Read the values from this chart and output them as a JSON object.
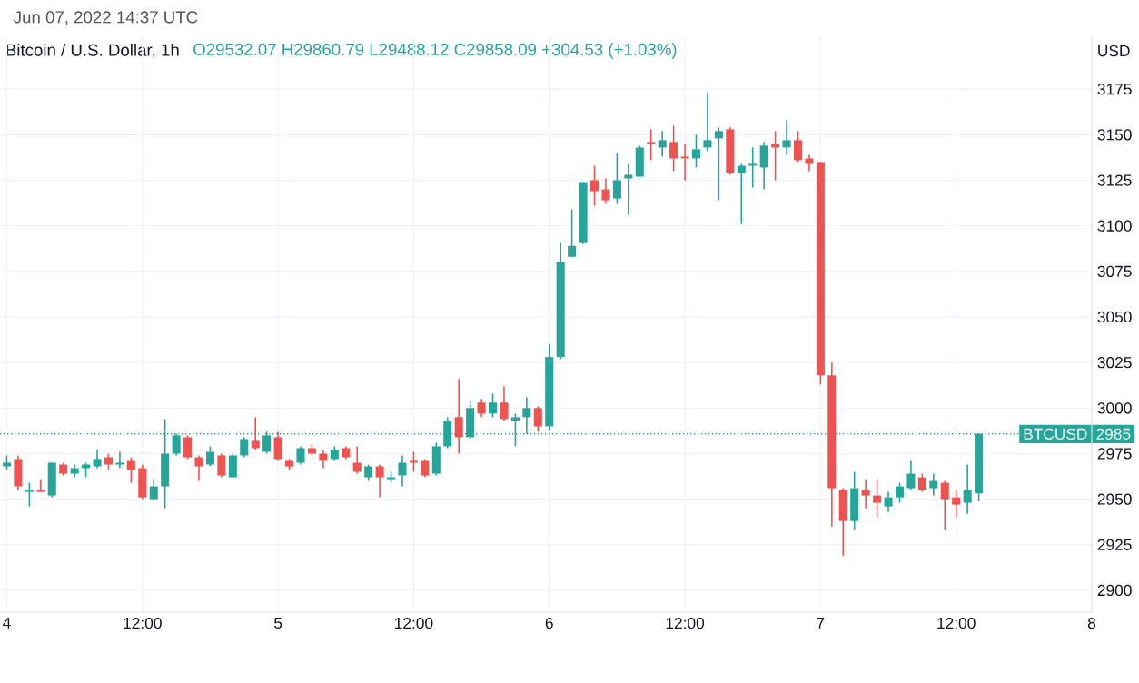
{
  "chart_data": {
    "type": "candlestick",
    "title": "Bitcoin / U.S. Dollar, 1h",
    "subtitle": "O29532.07 H29860.79 L29488.12 C29858.09 +304.53 (+1.03%)",
    "ylabel": "USD",
    "annotations": [
      "Jun 07, 2022 14:37 UTC",
      {
        "text": "2985",
        "y": 2985.8
      }
    ],
    "series": [
      {
        "color": "#26a69a",
        "x": [
          "2022-06-04T00:00",
          "2022-06-04T02:00",
          "2022-06-04T04:00",
          "2022-06-04T06:00",
          "2022-06-04T07:00",
          "2022-06-04T08:00",
          "2022-06-04T10:00",
          "2022-06-04T13:00",
          "2022-06-04T14:00",
          "2022-06-04T15:00",
          "2022-06-04T18:00",
          "2022-06-04T20:00",
          "2022-06-04T21:00",
          "2022-06-04T23:00",
          "2022-06-05T02:00",
          "2022-06-05T05:00",
          "2022-06-05T08:00",
          "2022-06-05T10:00",
          "2022-06-05T11:00",
          "2022-06-05T14:00",
          "2022-06-05T15:00",
          "2022-06-05T17:00",
          "2022-06-05T19:00",
          "2022-06-05T21:00",
          "2022-06-05T22:00",
          "2022-06-06T00:00",
          "2022-06-06T01:00",
          "2022-06-06T02:00",
          "2022-06-06T03:00",
          "2022-06-06T06:00",
          "2022-06-06T07:00",
          "2022-06-06T08:00",
          "2022-06-06T10:00",
          "2022-06-06T13:00",
          "2022-06-06T14:00",
          "2022-06-06T15:00",
          "2022-06-06T17:00",
          "2022-06-06T18:00",
          "2022-06-06T19:00",
          "2022-06-06T21:00",
          "2022-06-07T03:00",
          "2022-06-07T06:00",
          "2022-06-07T07:00",
          "2022-06-07T08:00",
          "2022-06-07T10:00",
          "2022-06-07T13:00",
          "2022-06-07T14:00"
        ],
        "ohlc": [
          [
            2968,
            2974,
            2966,
            2970
          ],
          [
            2954,
            2959,
            2946,
            2955
          ],
          [
            2952,
            2970,
            2951,
            2970
          ],
          [
            2964,
            2969,
            2962,
            2967
          ],
          [
            2967,
            2970,
            2962,
            2969
          ],
          [
            2968,
            2977,
            2967,
            2972
          ],
          [
            2969,
            2976,
            2967,
            2970
          ],
          [
            2950,
            2961,
            2949,
            2957
          ],
          [
            2957,
            2994,
            2945,
            2975
          ],
          [
            2975,
            2986,
            2974,
            2985
          ],
          [
            2969,
            2979,
            2968,
            2976
          ],
          [
            2962,
            2975,
            2962,
            2974
          ],
          [
            2974,
            2984,
            2973,
            2983
          ],
          [
            2976,
            2987,
            2975,
            2985
          ],
          [
            2970,
            2979,
            2969,
            2978
          ],
          [
            2972,
            2979,
            2971,
            2977
          ],
          [
            2962,
            2969,
            2960,
            2968
          ],
          [
            2961,
            2965,
            2959,
            2962
          ],
          [
            2963,
            2974,
            2957,
            2970
          ],
          [
            2964,
            2981,
            2963,
            2979
          ],
          [
            2979,
            2995,
            2978,
            2993
          ],
          [
            2984,
            3004,
            2983,
            3000
          ],
          [
            2997,
            3008,
            2995,
            3003
          ],
          [
            2993,
            2997,
            2979,
            2995
          ],
          [
            2995,
            3006,
            2986,
            3000
          ],
          [
            2990,
            3035,
            2988,
            3028
          ],
          [
            3028,
            3091,
            3027,
            3080
          ],
          [
            3083,
            3109,
            3083,
            3089
          ],
          [
            3091,
            3124,
            3090,
            3124
          ],
          [
            3115,
            3140,
            3112,
            3125
          ],
          [
            3126,
            3134,
            3106,
            3128
          ],
          [
            3127,
            3144,
            3127,
            3143
          ],
          [
            3143,
            3152,
            3138,
            3147
          ],
          [
            3137,
            3150,
            3132,
            3142
          ],
          [
            3143,
            3173,
            3141,
            3147
          ],
          [
            3148,
            3154,
            3114,
            3152
          ],
          [
            3129,
            3134,
            3101,
            3133
          ],
          [
            3133,
            3143,
            3121,
            3134
          ],
          [
            3132,
            3146,
            3120,
            3144
          ],
          [
            3143,
            3158,
            3139,
            3147
          ],
          [
            2938,
            2965,
            2933,
            2956
          ],
          [
            2946,
            2954,
            2943,
            2951
          ],
          [
            2951,
            2959,
            2948,
            2957
          ],
          [
            2956,
            2971,
            2955,
            2964
          ],
          [
            2956,
            2964,
            2952,
            2960
          ],
          [
            2948,
            2969,
            2942,
            2955
          ],
          [
            2953.2,
            2986.1,
            2948.8,
            2985.8
          ]
        ]
      },
      {
        "color": "#ef5350",
        "x": [
          "2022-06-04T01:00",
          "2022-06-04T03:00",
          "2022-06-04T05:00",
          "2022-06-04T09:00",
          "2022-06-04T11:00",
          "2022-06-04T12:00",
          "2022-06-04T16:00",
          "2022-06-04T17:00",
          "2022-06-04T19:00",
          "2022-06-04T22:00",
          "2022-06-05T00:00",
          "2022-06-05T01:00",
          "2022-06-05T03:00",
          "2022-06-05T04:00",
          "2022-06-05T06:00",
          "2022-06-05T07:00",
          "2022-06-05T09:00",
          "2022-06-05T12:00",
          "2022-06-05T13:00",
          "2022-06-05T16:00",
          "2022-06-05T18:00",
          "2022-06-05T20:00",
          "2022-06-05T23:00",
          "2022-06-06T04:00",
          "2022-06-06T05:00",
          "2022-06-06T09:00",
          "2022-06-06T11:00",
          "2022-06-06T12:00",
          "2022-06-06T16:00",
          "2022-06-06T20:00",
          "2022-06-06T22:00",
          "2022-06-06T23:00",
          "2022-06-07T00:00",
          "2022-06-07T01:00",
          "2022-06-07T02:00",
          "2022-06-07T04:00",
          "2022-06-07T05:00",
          "2022-06-07T09:00",
          "2022-06-07T11:00",
          "2022-06-07T12:00"
        ],
        "ohlc": [
          [
            2972,
            2974,
            2955,
            2957
          ],
          [
            2955,
            2961,
            2954,
            2954
          ],
          [
            2969,
            2970,
            2963,
            2964
          ],
          [
            2973,
            2975,
            2966,
            2969
          ],
          [
            2971,
            2973,
            2959,
            2966
          ],
          [
            2967,
            2969,
            2950,
            2951
          ],
          [
            2984,
            2985,
            2972,
            2973
          ],
          [
            2973,
            2974,
            2960,
            2968
          ],
          [
            2974,
            2975,
            2962,
            2963
          ],
          [
            2982,
            2995,
            2977,
            2978
          ],
          [
            2984,
            2987,
            2971,
            2972
          ],
          [
            2971,
            2972,
            2966,
            2968
          ],
          [
            2978,
            2980,
            2974,
            2975
          ],
          [
            2975,
            2977,
            2967,
            2971
          ],
          [
            2978,
            2979,
            2972,
            2973
          ],
          [
            2970,
            2979,
            2964,
            2965
          ],
          [
            2968,
            2969,
            2951,
            2962
          ],
          [
            2971,
            2976,
            2965,
            2970
          ],
          [
            2971,
            2972,
            2962,
            2963
          ],
          [
            2995,
            3016,
            2975,
            2984
          ],
          [
            3003,
            3005,
            2995,
            2997
          ],
          [
            3003,
            3012,
            2993,
            2994
          ],
          [
            3000,
            3001,
            2987,
            2990
          ],
          [
            3125,
            3133,
            3111,
            3119
          ],
          [
            3120,
            3126,
            3112,
            3114
          ],
          [
            3146,
            3153,
            3136,
            3145
          ],
          [
            3146,
            3155,
            3130,
            3137
          ],
          [
            3138,
            3145,
            3125,
            3137
          ],
          [
            3153,
            3154,
            3128,
            3129
          ],
          [
            3145,
            3152,
            3125,
            3143
          ],
          [
            3147,
            3152,
            3135,
            3136
          ],
          [
            3137,
            3139,
            3130,
            3134
          ],
          [
            3135,
            3135,
            3013,
            3018
          ],
          [
            3018,
            3025,
            2935,
            2956
          ],
          [
            2955,
            2956,
            2919,
            2938
          ],
          [
            2955,
            2961,
            2945,
            2952
          ],
          [
            2952,
            2961,
            2940,
            2948
          ],
          [
            2962,
            2964,
            2954,
            2955
          ],
          [
            2959,
            2960,
            2933,
            2950
          ],
          [
            2951,
            2955,
            2940,
            2947
          ]
        ]
      }
    ],
    "xlim": [
      "2022-06-03T23:24",
      "2022-06-08T00:00"
    ],
    "xticks": [
      {
        "value": "2022-06-04T00:00",
        "label": "4"
      },
      {
        "value": "2022-06-04T12:00",
        "label": "12:00"
      },
      {
        "value": "2022-06-05T00:00",
        "label": "5"
      },
      {
        "value": "2022-06-05T12:00",
        "label": "12:00"
      },
      {
        "value": "2022-06-06T00:00",
        "label": "6"
      },
      {
        "value": "2022-06-06T12:00",
        "label": "12:00"
      },
      {
        "value": "2022-06-07T00:00",
        "label": "7"
      },
      {
        "value": "2022-06-07T12:00",
        "label": "12:00"
      },
      {
        "value": "2022-06-08T00:00",
        "label": "8"
      }
    ],
    "ylim": [
      2888,
      3204
    ],
    "yticks": [
      2900,
      2925,
      2950,
      2975,
      3000,
      3025,
      3050,
      3075,
      3100,
      3125,
      3150,
      3175
    ],
    "ref_lines": [
      {
        "axis": "y",
        "value": 2985.8,
        "label": "BTCUSD",
        "color": "#26a69a",
        "line_style": "dotted"
      }
    ],
    "grid": true
  }
}
